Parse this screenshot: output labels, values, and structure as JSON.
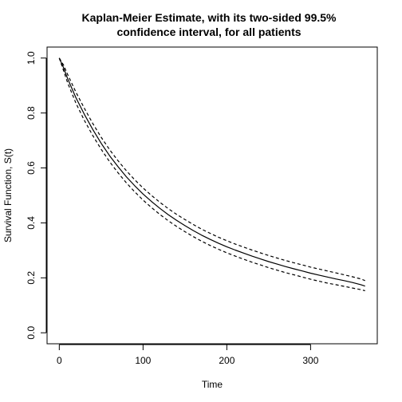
{
  "chart_data": {
    "type": "line",
    "title": "Kaplan-Meier Estimate, with its two-sided 99.5%",
    "subtitle": "confidence interval, for all patients",
    "xlabel": "Time",
    "ylabel": "Survival Function, S(t)",
    "xlim": [
      -14.6,
      379.6
    ],
    "ylim": [
      -0.04,
      1.04
    ],
    "xticks": [
      0,
      100,
      200,
      300
    ],
    "yticks": [
      0.0,
      0.2,
      0.4,
      0.6,
      0.8,
      1.0
    ],
    "grid": false,
    "x": [
      0,
      5,
      10,
      20,
      30,
      40,
      50,
      60,
      70,
      80,
      90,
      100,
      110,
      120,
      130,
      140,
      150,
      160,
      170,
      180,
      190,
      200,
      210,
      220,
      230,
      240,
      250,
      260,
      270,
      280,
      290,
      300,
      310,
      320,
      330,
      340,
      350,
      360,
      365
    ],
    "series": [
      {
        "style": "solid",
        "values": [
          1.0,
          0.965,
          0.925,
          0.855,
          0.795,
          0.74,
          0.69,
          0.645,
          0.605,
          0.568,
          0.535,
          0.505,
          0.478,
          0.453,
          0.43,
          0.409,
          0.39,
          0.372,
          0.355,
          0.34,
          0.326,
          0.313,
          0.301,
          0.29,
          0.279,
          0.269,
          0.259,
          0.25,
          0.241,
          0.233,
          0.225,
          0.217,
          0.21,
          0.203,
          0.196,
          0.19,
          0.183,
          0.175,
          0.17
        ]
      },
      {
        "style": "dashed",
        "values": [
          1.0,
          0.975,
          0.94,
          0.875,
          0.817,
          0.762,
          0.712,
          0.667,
          0.627,
          0.59,
          0.557,
          0.527,
          0.5,
          0.475,
          0.452,
          0.431,
          0.412,
          0.394,
          0.377,
          0.362,
          0.348,
          0.335,
          0.323,
          0.312,
          0.301,
          0.291,
          0.281,
          0.272,
          0.263,
          0.255,
          0.247,
          0.239,
          0.232,
          0.225,
          0.218,
          0.211,
          0.204,
          0.196,
          0.19
        ]
      },
      {
        "style": "dashed",
        "values": [
          1.0,
          0.955,
          0.91,
          0.835,
          0.773,
          0.718,
          0.668,
          0.623,
          0.583,
          0.546,
          0.513,
          0.483,
          0.456,
          0.431,
          0.408,
          0.387,
          0.368,
          0.35,
          0.333,
          0.318,
          0.304,
          0.291,
          0.279,
          0.268,
          0.257,
          0.247,
          0.237,
          0.228,
          0.219,
          0.211,
          0.203,
          0.195,
          0.188,
          0.181,
          0.175,
          0.169,
          0.163,
          0.157,
          0.153
        ]
      }
    ]
  }
}
